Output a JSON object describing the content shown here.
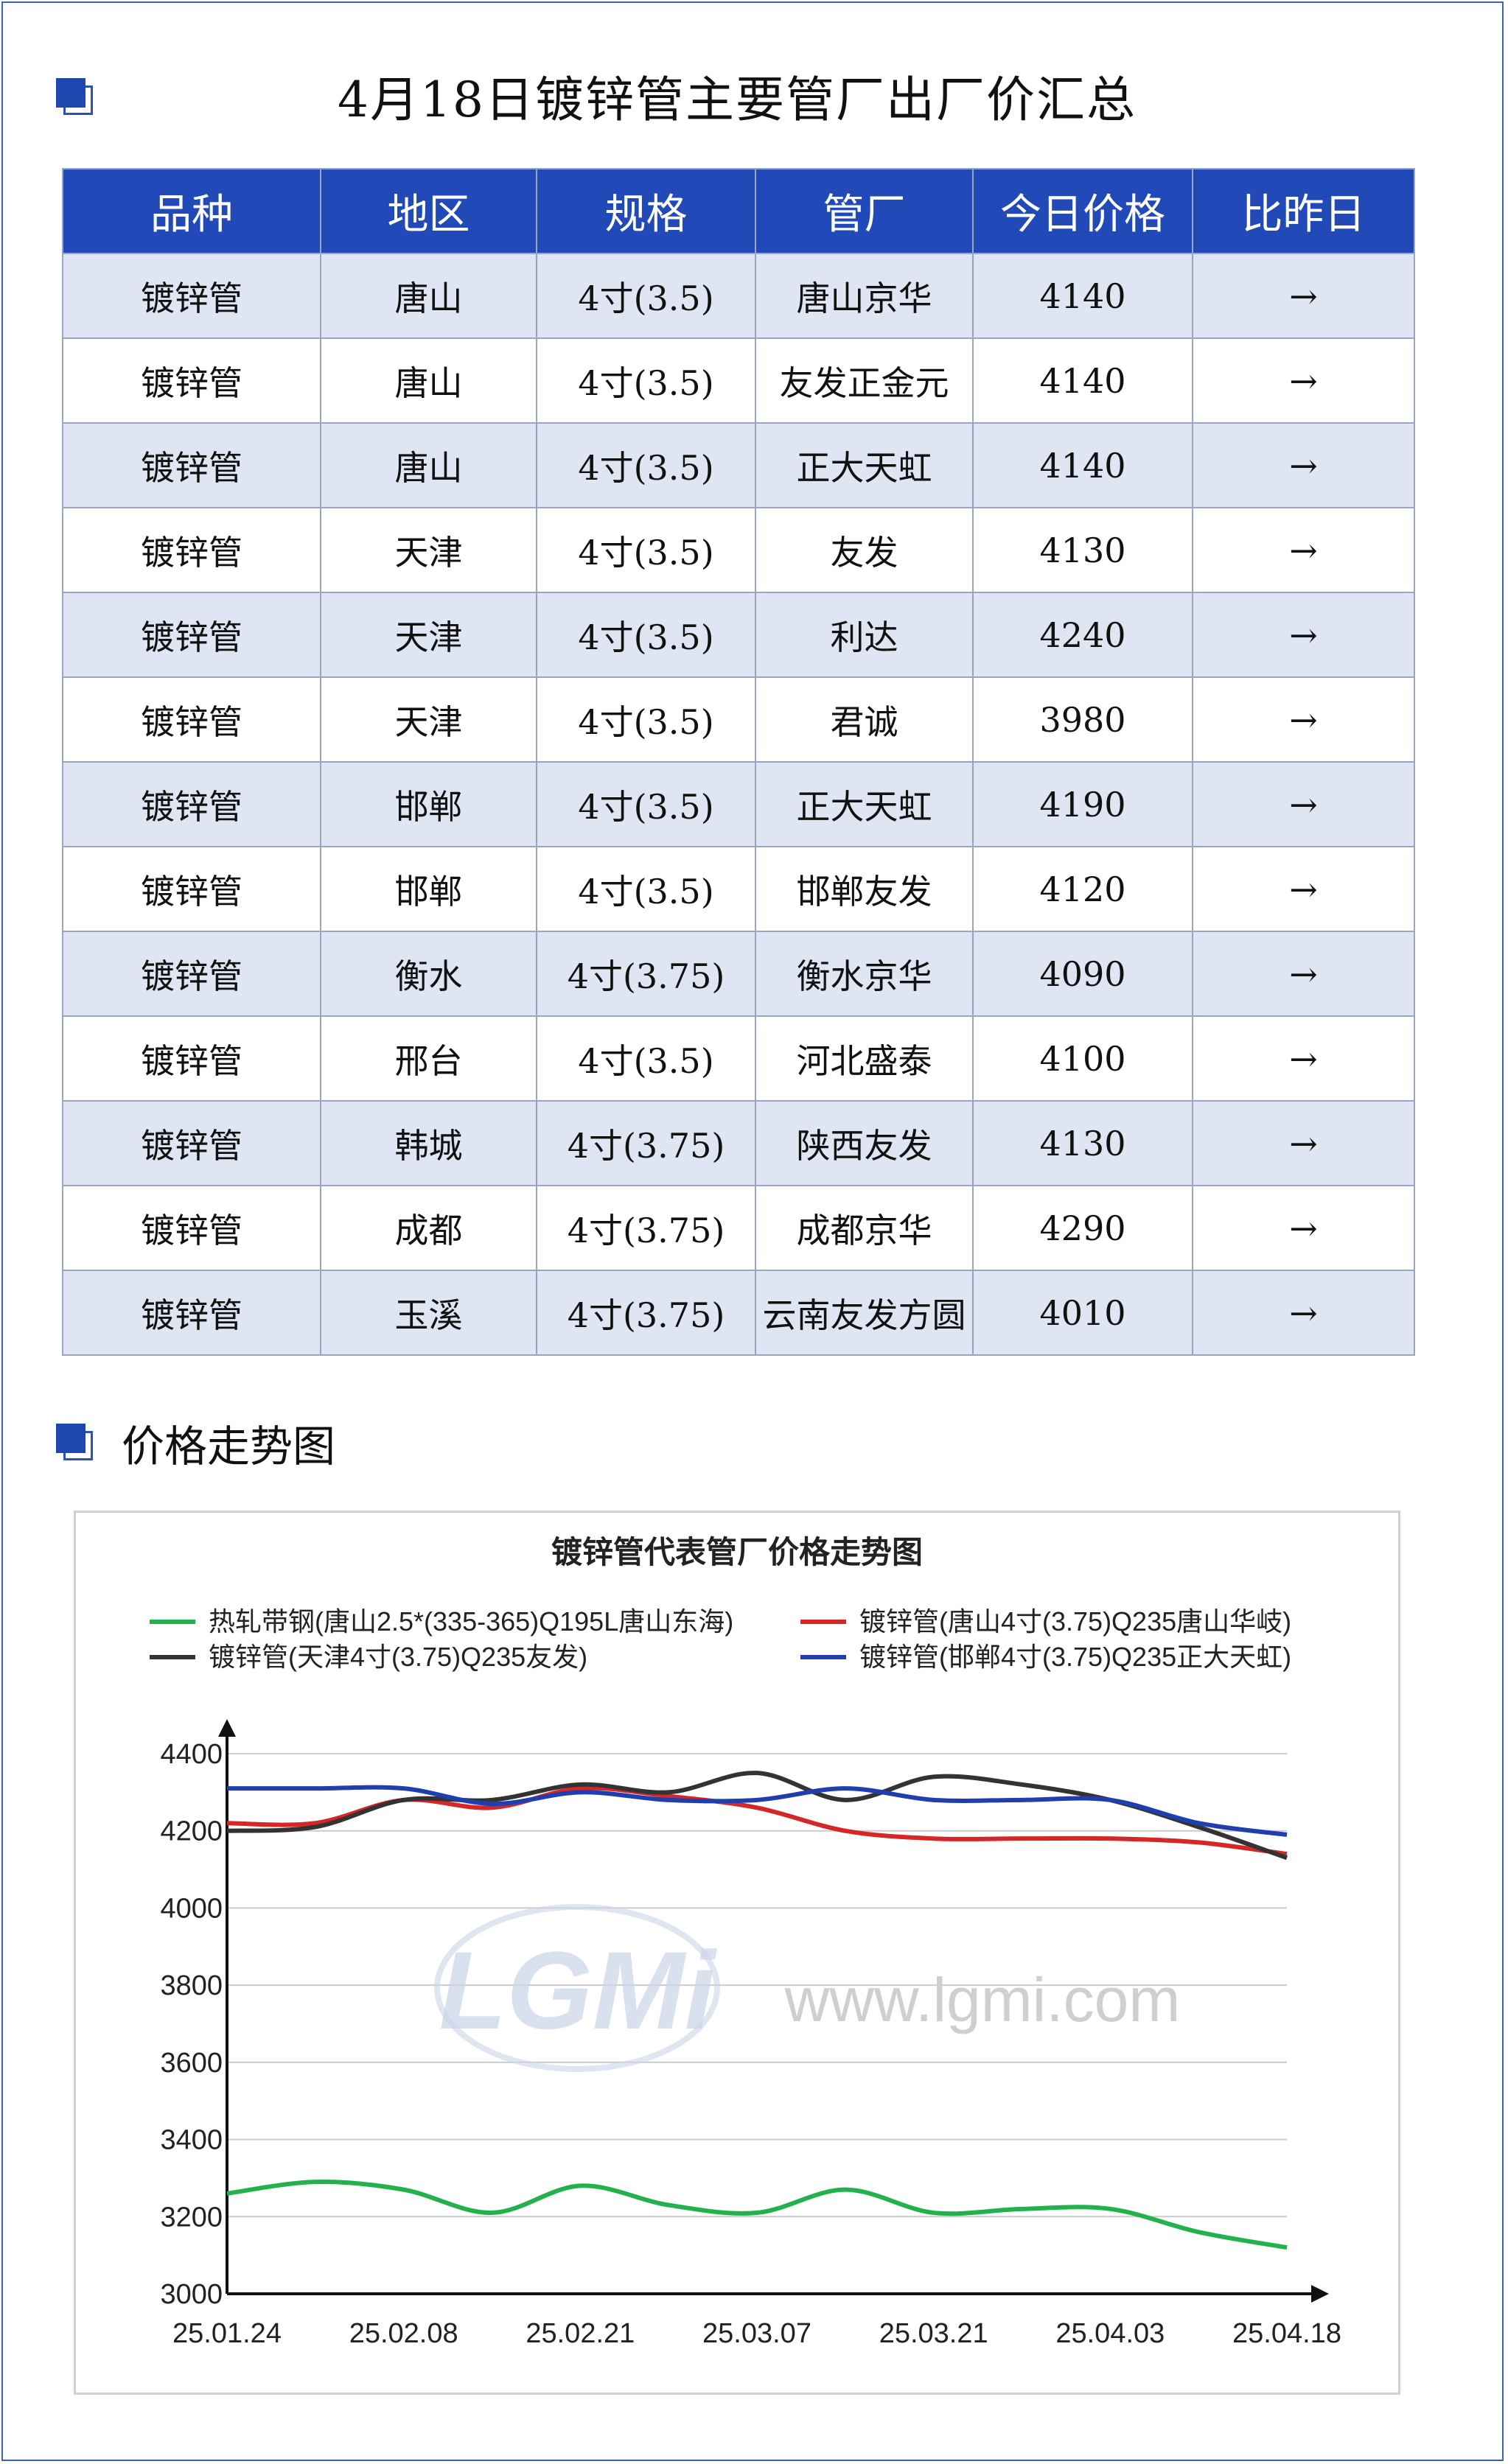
{
  "header": {
    "title": "4月18日镀锌管主要管厂出厂价汇总"
  },
  "table": {
    "columns": [
      "品种",
      "地区",
      "规格",
      "管厂",
      "今日价格",
      "比昨日"
    ],
    "rows": [
      [
        "镀锌管",
        "唐山",
        "4寸(3.5)",
        "唐山京华",
        "4140",
        "→"
      ],
      [
        "镀锌管",
        "唐山",
        "4寸(3.5)",
        "友发正金元",
        "4140",
        "→"
      ],
      [
        "镀锌管",
        "唐山",
        "4寸(3.5)",
        "正大天虹",
        "4140",
        "→"
      ],
      [
        "镀锌管",
        "天津",
        "4寸(3.5)",
        "友发",
        "4130",
        "→"
      ],
      [
        "镀锌管",
        "天津",
        "4寸(3.5)",
        "利达",
        "4240",
        "→"
      ],
      [
        "镀锌管",
        "天津",
        "4寸(3.5)",
        "君诚",
        "3980",
        "→"
      ],
      [
        "镀锌管",
        "邯郸",
        "4寸(3.5)",
        "正大天虹",
        "4190",
        "→"
      ],
      [
        "镀锌管",
        "邯郸",
        "4寸(3.5)",
        "邯郸友发",
        "4120",
        "→"
      ],
      [
        "镀锌管",
        "衡水",
        "4寸(3.75)",
        "衡水京华",
        "4090",
        "→"
      ],
      [
        "镀锌管",
        "邢台",
        "4寸(3.5)",
        "河北盛泰",
        "4100",
        "→"
      ],
      [
        "镀锌管",
        "韩城",
        "4寸(3.75)",
        "陕西友发",
        "4130",
        "→"
      ],
      [
        "镀锌管",
        "成都",
        "4寸(3.75)",
        "成都京华",
        "4290",
        "→"
      ],
      [
        "镀锌管",
        "玉溪",
        "4寸(3.75)",
        "云南友发方圆",
        "4010",
        "→"
      ]
    ]
  },
  "section2": {
    "title": "价格走势图"
  },
  "watermark": {
    "logo_text": "LGMi",
    "url_text": "www.lgmi.com"
  },
  "colors": {
    "header_bg": "#2149b8",
    "row_alt_bg": "#dfe5f3",
    "frame": "#3a63b8"
  },
  "chart_data": {
    "type": "line",
    "title": "镀锌管代表管厂价格走势图",
    "x_ticks": [
      "25.01.24",
      "25.02.08",
      "25.02.21",
      "25.03.07",
      "25.03.21",
      "25.04.03",
      "25.04.18"
    ],
    "ylim": [
      3000,
      4400
    ],
    "y_ticks": [
      3000,
      3200,
      3400,
      3600,
      3800,
      4000,
      4200,
      4400
    ],
    "legend_position": "top",
    "series": [
      {
        "name": "热轧带钢(唐山2.5*(335-365)Q195L唐山东海)",
        "color": "#22b14c",
        "x": [
          0,
          0.5,
          1.0,
          1.5,
          2.0,
          2.5,
          3.0,
          3.5,
          4.0,
          4.5,
          5.0,
          5.5,
          6.0
        ],
        "values": [
          3260,
          3290,
          3270,
          3210,
          3280,
          3230,
          3210,
          3270,
          3210,
          3220,
          3220,
          3160,
          3120
        ]
      },
      {
        "name": "镀锌管(唐山4寸(3.75)Q235唐山华岐)",
        "color": "#d62728",
        "x": [
          0,
          0.5,
          1.0,
          1.5,
          2.0,
          2.5,
          3.0,
          3.5,
          4.0,
          4.5,
          5.0,
          5.5,
          6.0
        ],
        "values": [
          4220,
          4220,
          4280,
          4260,
          4310,
          4290,
          4260,
          4200,
          4180,
          4180,
          4180,
          4170,
          4140
        ]
      },
      {
        "name": "镀锌管(天津4寸(3.75)Q235友发)",
        "color": "#333333",
        "x": [
          0,
          0.5,
          1.0,
          1.5,
          2.0,
          2.5,
          3.0,
          3.5,
          4.0,
          4.5,
          5.0,
          5.5,
          6.0
        ],
        "values": [
          4200,
          4210,
          4280,
          4280,
          4320,
          4300,
          4350,
          4280,
          4340,
          4320,
          4280,
          4210,
          4130
        ]
      },
      {
        "name": "镀锌管(邯郸4寸(3.75)Q235正大天虹)",
        "color": "#1f3fb0",
        "x": [
          0,
          0.5,
          1.0,
          1.5,
          2.0,
          2.5,
          3.0,
          3.5,
          4.0,
          4.5,
          5.0,
          5.5,
          6.0
        ],
        "values": [
          4310,
          4310,
          4310,
          4270,
          4300,
          4280,
          4280,
          4310,
          4280,
          4280,
          4280,
          4220,
          4190
        ]
      }
    ]
  }
}
